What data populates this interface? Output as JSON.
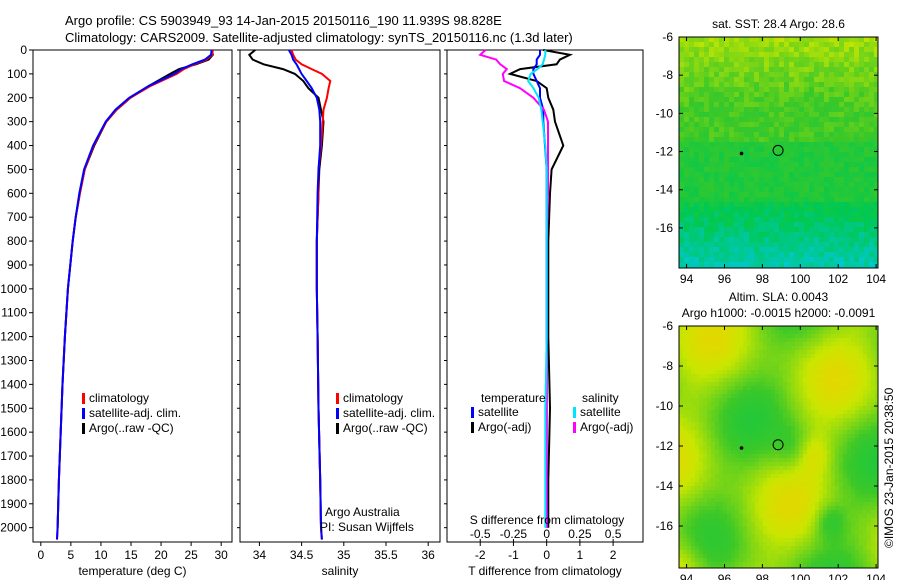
{
  "title_line1": "Argo profile: CS 5903949_93 14-Jan-2015 20150116_190 11.939S 98.828E",
  "title_line2": "Climatology: CARS2009. Satellite-adjusted climatology: synTS_20150116.nc (1.3d later)",
  "colors": {
    "climatology": "#ff0000",
    "satellite": "#0000ff",
    "argo": "#000000",
    "sal_satellite": "#00e5ff",
    "sal_argo": "#ff00ff"
  },
  "chart_data": [
    {
      "type": "line",
      "name": "temperature",
      "xlabel": "temperature (deg C)",
      "xlim": [
        -1.3,
        31.8
      ],
      "ylim": [
        2060,
        0
      ],
      "xticks": [
        0,
        5,
        10,
        15,
        20,
        25,
        30
      ],
      "yticks": [
        0,
        100,
        200,
        300,
        400,
        500,
        600,
        700,
        800,
        900,
        1000,
        1100,
        1200,
        1300,
        1400,
        1500,
        1600,
        1700,
        1800,
        1900,
        2000
      ],
      "legend": [
        "climatology",
        "satellite-adj. clim.",
        "Argo(..raw -QC)"
      ],
      "depth": [
        0,
        20,
        40,
        60,
        80,
        100,
        150,
        200,
        250,
        300,
        400,
        500,
        600,
        700,
        800,
        1000,
        1200,
        1400,
        1600,
        1800,
        2000,
        2050
      ],
      "series": [
        {
          "name": "climatology",
          "values": [
            28.6,
            28.5,
            27.6,
            25.5,
            23.8,
            22.6,
            18.3,
            14.9,
            12.6,
            10.9,
            8.8,
            7.3,
            6.5,
            5.8,
            5.3,
            4.5,
            4.0,
            3.6,
            3.3,
            3.0,
            2.8,
            2.7
          ]
        },
        {
          "name": "satellite-adj. clim.",
          "values": [
            28.4,
            28.3,
            27.3,
            25.2,
            23.4,
            22.2,
            18.0,
            14.7,
            12.4,
            10.8,
            8.7,
            7.2,
            6.4,
            5.8,
            5.3,
            4.5,
            4.0,
            3.6,
            3.3,
            3.0,
            2.8,
            2.7
          ]
        },
        {
          "name": "Argo",
          "values": [
            28.5,
            28.6,
            27.9,
            25.8,
            23.0,
            21.5,
            18.0,
            14.9,
            12.6,
            10.9,
            8.9,
            7.3,
            6.5,
            5.8,
            5.3,
            4.5,
            4.0,
            3.6,
            3.3,
            3.0,
            2.8,
            null
          ]
        }
      ]
    },
    {
      "type": "line",
      "name": "salinity",
      "xlabel": "salinity",
      "xlim": [
        33.77,
        36.14
      ],
      "ylim": [
        2060,
        0
      ],
      "xticks": [
        34,
        34.5,
        35,
        35.5,
        36
      ],
      "legend": [
        "climatology",
        "satellite-adj. clim.",
        "Argo(..raw -QC)"
      ],
      "annotation": [
        "Argo Australia",
        "PI: Susan Wijffels"
      ],
      "depth": [
        0,
        20,
        40,
        60,
        80,
        100,
        130,
        160,
        200,
        250,
        300,
        400,
        500,
        600,
        800,
        1000,
        1200,
        1500,
        1800,
        2000,
        2050
      ],
      "series": [
        {
          "name": "climatology",
          "values": [
            34.38,
            34.4,
            34.43,
            34.5,
            34.62,
            34.74,
            34.84,
            34.82,
            34.8,
            34.76,
            34.75,
            34.73,
            34.7,
            34.7,
            34.68,
            34.68,
            34.69,
            34.7,
            34.72,
            34.73,
            34.74
          ]
        },
        {
          "name": "satellite-adj. clim.",
          "values": [
            34.35,
            34.38,
            34.4,
            34.44,
            34.47,
            34.5,
            34.56,
            34.62,
            34.68,
            34.71,
            34.72,
            34.72,
            34.7,
            34.69,
            34.68,
            34.68,
            34.69,
            34.7,
            34.72,
            34.73,
            34.74
          ]
        },
        {
          "name": "Argo",
          "values": [
            33.95,
            33.88,
            33.92,
            34.05,
            34.28,
            34.42,
            34.52,
            34.58,
            34.7,
            34.73,
            34.76,
            34.74,
            34.71,
            34.7,
            34.68,
            34.68,
            34.69,
            34.7,
            34.72,
            34.73,
            null
          ]
        }
      ]
    },
    {
      "type": "line",
      "name": "differences",
      "xlabel": "T difference from climatology",
      "xlabel2": "S difference from climatology",
      "xlim": [
        -3.0,
        2.9
      ],
      "ylim": [
        2060,
        0
      ],
      "xticks": [
        -2,
        -1,
        0,
        1,
        2
      ],
      "xticks2": [
        -0.5,
        -0.25,
        0,
        0.25,
        0.5
      ],
      "s_scale": 4,
      "legend_temp": [
        "temperature",
        "satellite",
        "Argo(-adj)"
      ],
      "legend_sal": [
        "salinity",
        "satellite",
        "Argo(-adj)"
      ],
      "depth": [
        0,
        20,
        40,
        60,
        80,
        100,
        130,
        160,
        200,
        250,
        300,
        400,
        500,
        600,
        800,
        1000,
        1200,
        1500,
        1800,
        2000
      ],
      "series": [
        {
          "name": "T satellite",
          "values": [
            -0.2,
            -0.2,
            -0.3,
            -0.3,
            -0.4,
            -0.4,
            -0.3,
            -0.2,
            -0.2,
            -0.1,
            -0.1,
            -0.05,
            0,
            0,
            0,
            0,
            0,
            0,
            0,
            0
          ]
        },
        {
          "name": "T Argo",
          "values": [
            -0.1,
            0.7,
            0.4,
            0.3,
            -0.8,
            -1.1,
            -0.3,
            0,
            0.05,
            0.2,
            0.25,
            0.5,
            0.15,
            0.1,
            0.05,
            0.05,
            0.05,
            0.1,
            0.05,
            0.05
          ]
        },
        {
          "name": "S satellite",
          "values": [
            -0.01,
            -0.01,
            -0.02,
            -0.03,
            -0.07,
            -0.12,
            -0.14,
            -0.1,
            -0.06,
            -0.04,
            -0.03,
            -0.01,
            0,
            0,
            0,
            0,
            0,
            -0.01,
            -0.01,
            -0.01
          ]
        },
        {
          "name": "S Argo",
          "values": [
            -0.46,
            -0.5,
            -0.38,
            -0.35,
            -0.3,
            -0.33,
            -0.32,
            -0.2,
            -0.1,
            -0.02,
            0.01,
            0.01,
            0.01,
            0.01,
            0,
            0,
            0,
            0,
            0,
            0
          ]
        }
      ]
    },
    {
      "type": "heatmap",
      "name": "sst-map",
      "title": "sat. SST: 28.4  Argo: 28.6",
      "xlim": [
        93.6,
        104.1
      ],
      "ylim": [
        -18.1,
        -6
      ],
      "xticks": [
        94,
        96,
        98,
        100,
        102,
        104
      ],
      "yticks": [
        -6,
        -8,
        -10,
        -12,
        -14,
        -16
      ],
      "argo_position": [
        98.828,
        -11.939
      ],
      "previous_position": [
        96.9,
        -12.1
      ]
    },
    {
      "type": "heatmap",
      "name": "sla-map",
      "title": "Altim. SLA: 0.0043",
      "subtitle": "Argo h1000: -0.0015 h2000: -0.0091",
      "xlim": [
        93.6,
        104.1
      ],
      "ylim": [
        -18.1,
        -6
      ],
      "xticks": [
        94,
        96,
        98,
        100,
        102,
        104
      ],
      "yticks": [
        -6,
        -8,
        -10,
        -12,
        -14,
        -16
      ],
      "argo_position": [
        98.828,
        -11.939
      ],
      "previous_position": [
        96.9,
        -12.1
      ]
    }
  ],
  "credit": "©IMOS 23-Jan-2015 20:38:50"
}
